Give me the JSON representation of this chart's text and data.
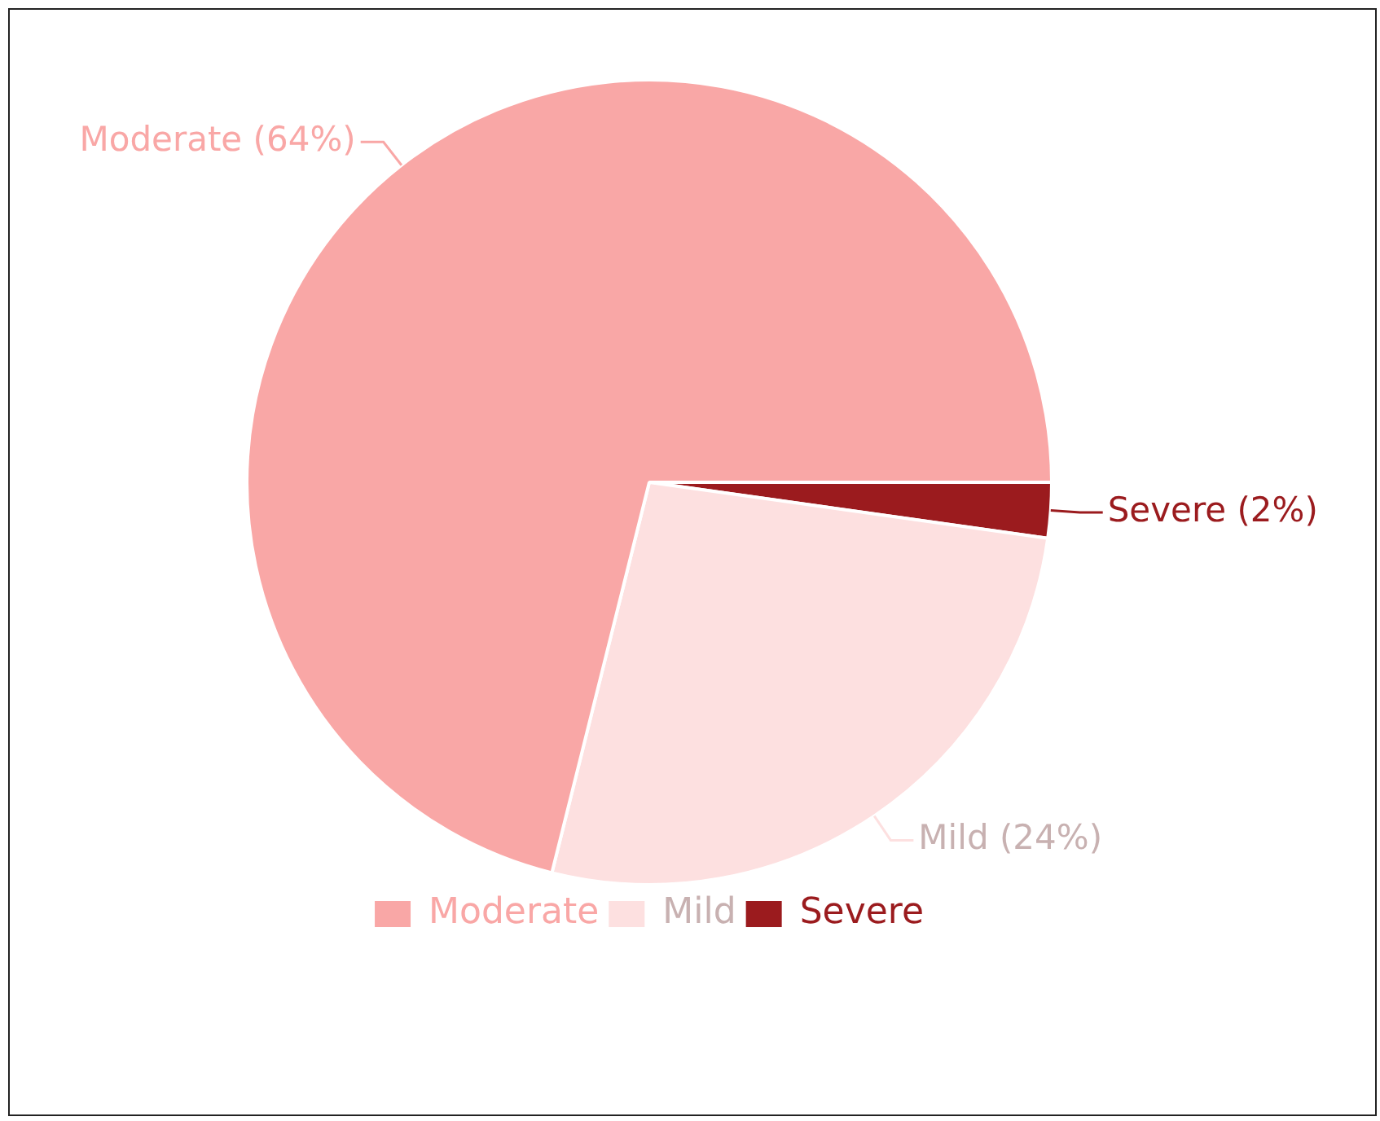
{
  "chart_data": {
    "type": "pie",
    "categories": [
      "Moderate",
      "Mild",
      "Severe"
    ],
    "values": [
      64,
      24,
      2
    ],
    "value_labels": [
      "(64%)",
      "(24%)",
      "(2%)"
    ],
    "colors": [
      "#f9a7a6",
      "#fde0e0",
      "#9b1b1e"
    ],
    "legend": "bottom"
  }
}
